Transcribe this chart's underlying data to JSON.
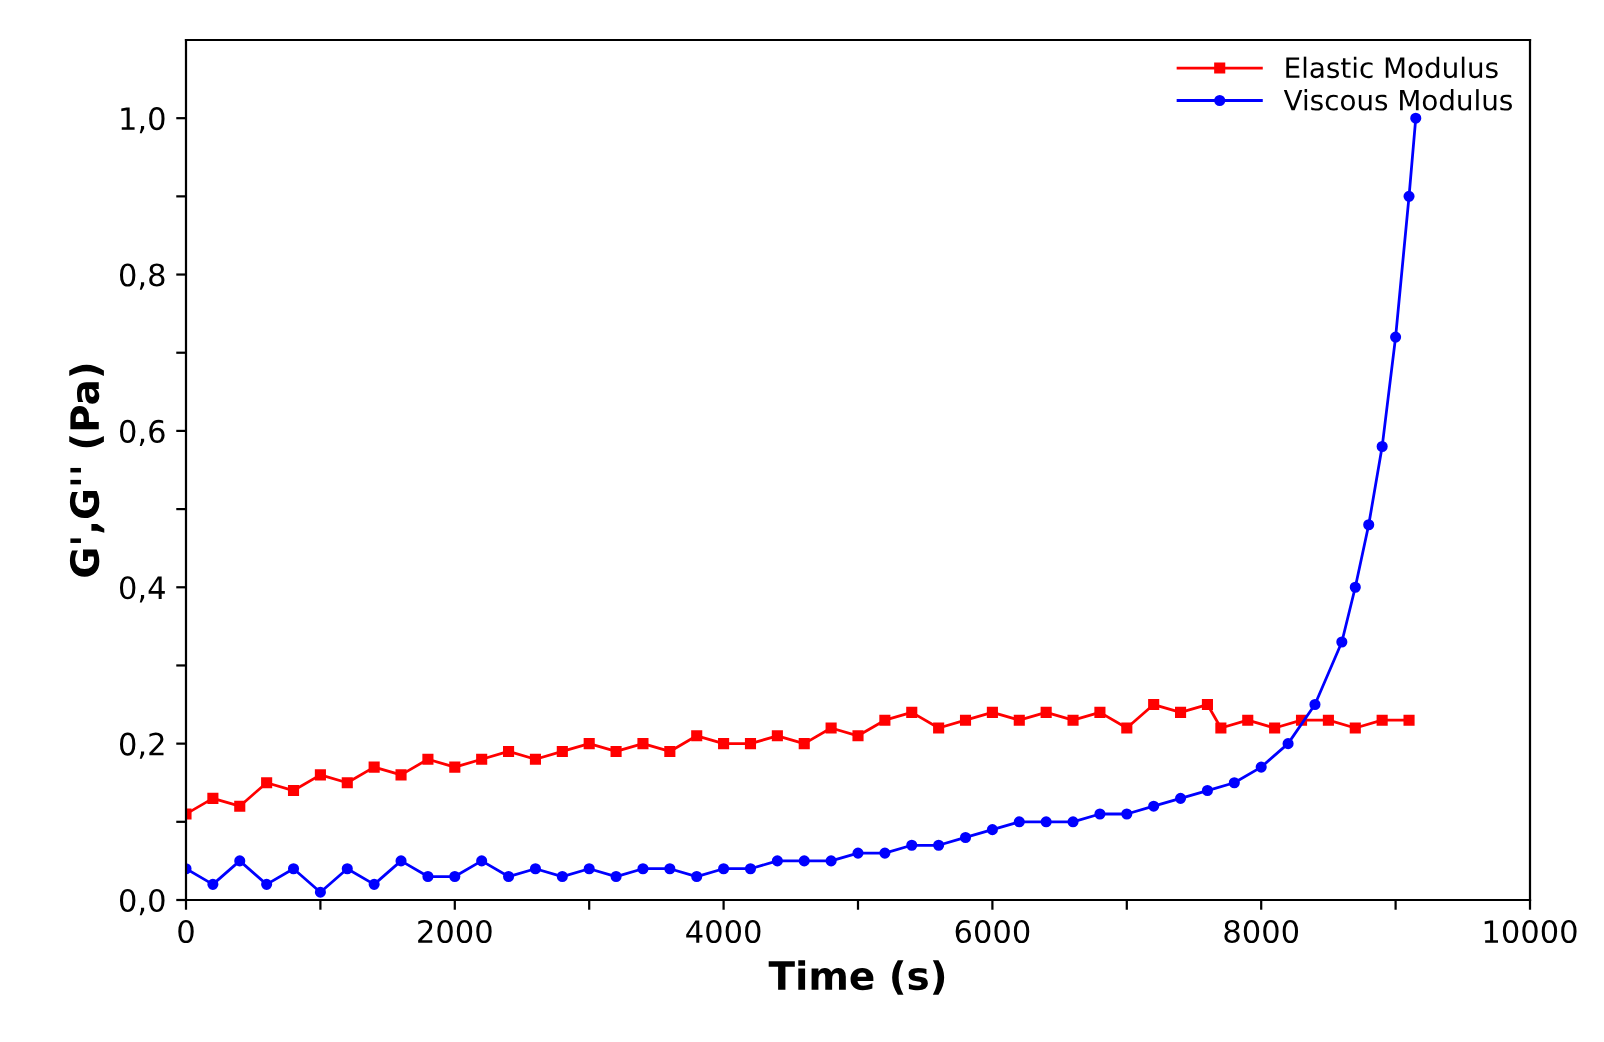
{
  "chart_data": {
    "type": "line",
    "xlabel": "Time (s)",
    "ylabel": "G',G'' (Pa)",
    "xlim": [
      0,
      10000
    ],
    "ylim": [
      0,
      1.1
    ],
    "xticks": [
      0,
      {
        "value": 1000,
        "label": null
      },
      2000,
      {
        "value": 3000,
        "label": null
      },
      4000,
      {
        "value": 5000,
        "label": null
      },
      6000,
      {
        "value": 7000,
        "label": null
      },
      8000,
      {
        "value": 9000,
        "label": null
      },
      10000
    ],
    "yticks": [
      {
        "value": 0,
        "label": "0,0"
      },
      {
        "value": 0.1,
        "label": null
      },
      {
        "value": 0.2,
        "label": "0,2"
      },
      {
        "value": 0.3,
        "label": null
      },
      {
        "value": 0.4,
        "label": "0,4"
      },
      {
        "value": 0.5,
        "label": null
      },
      {
        "value": 0.6,
        "label": "0,6"
      },
      {
        "value": 0.7,
        "label": null
      },
      {
        "value": 0.8,
        "label": "0,8"
      },
      {
        "value": 0.9,
        "label": null
      },
      {
        "value": 1.0,
        "label": "1,0"
      }
    ],
    "legend": "top right",
    "grid": false,
    "line_style": "solid",
    "series": [
      {
        "name": "Elastic Modulus",
        "color": "#ff0000",
        "marker": "square",
        "x": [
          0,
          200,
          400,
          600,
          800,
          1000,
          1200,
          1400,
          1600,
          1800,
          2000,
          2200,
          2400,
          2600,
          2800,
          3000,
          3200,
          3400,
          3600,
          3800,
          4000,
          4200,
          4400,
          4600,
          4800,
          5000,
          5200,
          5400,
          5600,
          5800,
          6000,
          6200,
          6400,
          6600,
          6800,
          7000,
          7200,
          7400,
          7600,
          7700,
          7900,
          8100,
          8300,
          8500,
          8700,
          8900,
          9100
        ],
        "values": [
          0.11,
          0.13,
          0.12,
          0.15,
          0.14,
          0.16,
          0.15,
          0.17,
          0.16,
          0.18,
          0.17,
          0.18,
          0.19,
          0.18,
          0.19,
          0.2,
          0.19,
          0.2,
          0.19,
          0.21,
          0.2,
          0.2,
          0.21,
          0.2,
          0.22,
          0.21,
          0.23,
          0.24,
          0.22,
          0.23,
          0.24,
          0.23,
          0.24,
          0.23,
          0.24,
          0.22,
          0.25,
          0.24,
          0.25,
          0.22,
          0.23,
          0.22,
          0.23,
          0.23,
          0.22,
          0.23,
          0.23
        ]
      },
      {
        "name": "Viscous Modulus",
        "color": "#0000ff",
        "marker": "circle",
        "x": [
          0,
          200,
          400,
          600,
          800,
          1000,
          1200,
          1400,
          1600,
          1800,
          2000,
          2200,
          2400,
          2600,
          2800,
          3000,
          3200,
          3400,
          3600,
          3800,
          4000,
          4200,
          4400,
          4600,
          4800,
          5000,
          5200,
          5400,
          5600,
          5800,
          6000,
          6200,
          6400,
          6600,
          6800,
          7000,
          7200,
          7400,
          7600,
          7800,
          8000,
          8200,
          8400,
          8600,
          8700,
          8800,
          8900,
          9000,
          9100,
          9150
        ],
        "values": [
          0.04,
          0.02,
          0.05,
          0.02,
          0.04,
          0.01,
          0.04,
          0.02,
          0.05,
          0.03,
          0.03,
          0.05,
          0.03,
          0.04,
          0.03,
          0.04,
          0.03,
          0.04,
          0.04,
          0.03,
          0.04,
          0.04,
          0.05,
          0.05,
          0.05,
          0.06,
          0.06,
          0.07,
          0.07,
          0.08,
          0.09,
          0.1,
          0.1,
          0.1,
          0.11,
          0.11,
          0.12,
          0.13,
          0.14,
          0.15,
          0.17,
          0.2,
          0.25,
          0.33,
          0.4,
          0.48,
          0.58,
          0.72,
          0.9,
          1.0
        ]
      }
    ]
  }
}
